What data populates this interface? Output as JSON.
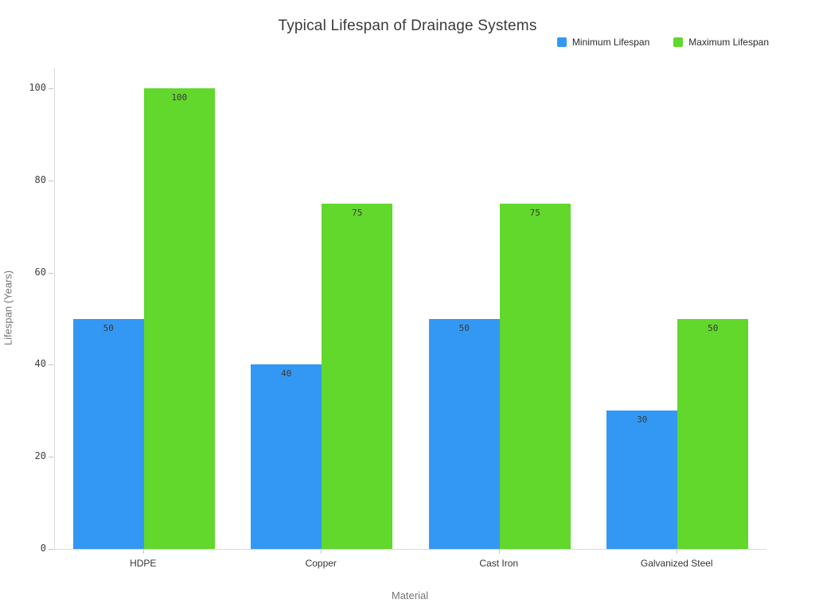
{
  "chart_data": {
    "type": "bar",
    "title": "Typical Lifespan of Drainage Systems",
    "categories": [
      "HDPE",
      "Copper",
      "Cast Iron",
      "Galvanized Steel"
    ],
    "series": [
      {
        "name": "Minimum Lifespan",
        "color": "#3398f4",
        "values": [
          50,
          40,
          50,
          30
        ]
      },
      {
        "name": "Maximum Lifespan",
        "color": "#62d72c",
        "values": [
          100,
          75,
          75,
          50
        ]
      }
    ],
    "xlabel": "Material",
    "ylabel": "Lifespan (Years)",
    "ylim": [
      0,
      100
    ],
    "yticks": [
      0,
      20,
      40,
      60,
      80,
      100
    ],
    "grid": false,
    "legend_position": "top-right",
    "bar_value_labels": true,
    "background_color": "#ffffff",
    "spine_color": "#d9d9d9"
  }
}
